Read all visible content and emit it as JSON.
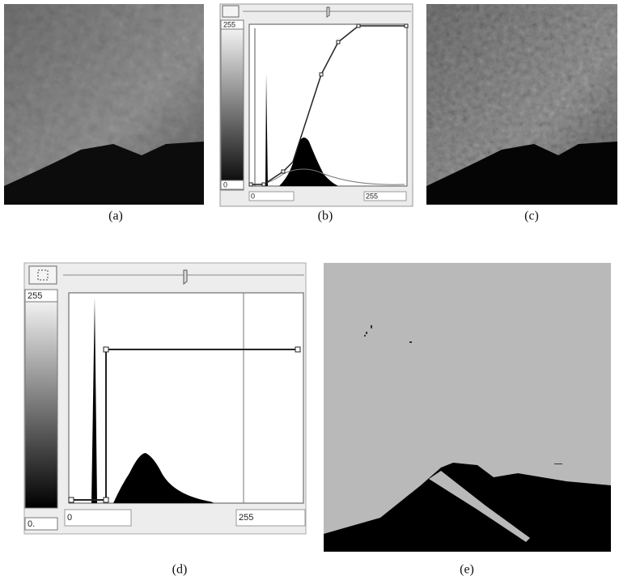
{
  "panels": [
    {
      "caption": "(a)"
    },
    {
      "caption": "(b)",
      "gradient_max": "255",
      "gradient_min": "0",
      "range_min": "0",
      "range_max": "255"
    },
    {
      "caption": "(c)"
    },
    {
      "caption": "(d)",
      "gradient_max": "255",
      "gradient_min": "0.",
      "range_min": "0",
      "range_max": "255"
    },
    {
      "caption": "(e)"
    }
  ]
}
